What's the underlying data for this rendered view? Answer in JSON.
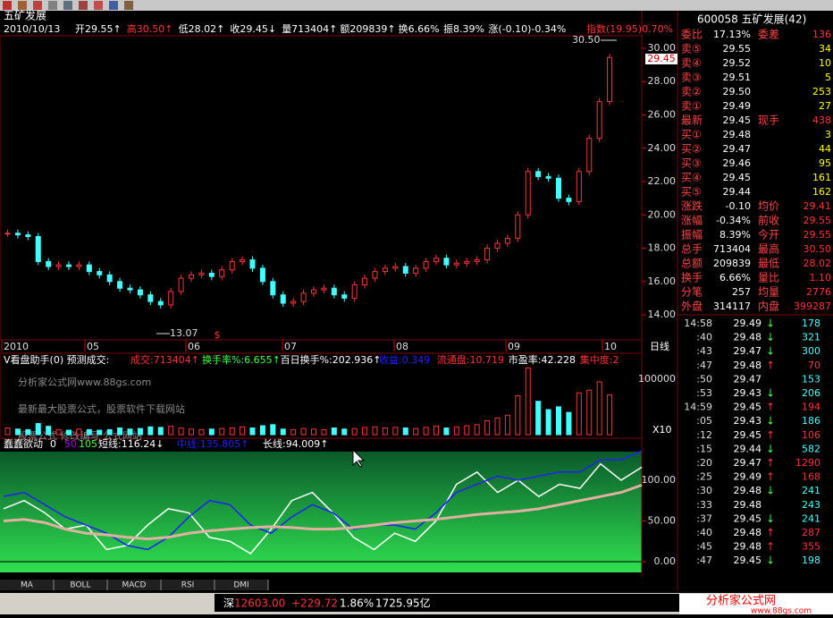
{
  "header": {
    "name": "五矿发展",
    "info": [
      "2010/10/13",
      "开29.55↑",
      "高30.50↑",
      "低28.02↑",
      "收29.45↓",
      "量713404↑",
      "额209839↑",
      "换6.66%",
      "振8.39%",
      "涨(-0.10)-0.34%",
      "指数(19.95)0.70%"
    ]
  },
  "price_panel": {
    "ylim": [
      12.5,
      30.75
    ],
    "yticks": [
      {
        "value": 14,
        "label": "14.00"
      },
      {
        "value": 16,
        "label": "16.00"
      },
      {
        "value": 18,
        "label": "18.00"
      },
      {
        "value": 20,
        "label": "20.00"
      },
      {
        "value": 22,
        "label": "22.00"
      },
      {
        "value": 24,
        "label": "24.00"
      },
      {
        "value": 26,
        "label": "26.00"
      },
      {
        "value": 28,
        "label": "28.00"
      },
      {
        "value": 30,
        "label": "30.00"
      }
    ],
    "closes": [
      18.9,
      18.8,
      18.7,
      17.2,
      16.9,
      17.0,
      16.9,
      17.0,
      16.6,
      16.4,
      16.0,
      15.6,
      15.5,
      15.2,
      14.8,
      14.6,
      15.4,
      16.2,
      16.4,
      16.5,
      16.3,
      16.7,
      17.2,
      17.3,
      16.8,
      16.0,
      15.2,
      14.7,
      14.8,
      15.3,
      15.5,
      15.6,
      15.2,
      15.0,
      15.8,
      16.2,
      16.6,
      16.8,
      16.9,
      16.5,
      16.8,
      17.2,
      17.4,
      17.0,
      17.1,
      17.2,
      17.3,
      18.0,
      18.3,
      18.6,
      20.0,
      22.6,
      22.3,
      22.2,
      21.0,
      20.8,
      22.6,
      24.6,
      26.8,
      29.45
    ],
    "high_label": "30.50",
    "low_label": "13.07",
    "last_label": "29.45",
    "marker": "$"
  },
  "dates": [
    "2010",
    "05",
    "06",
    "07",
    "08",
    "09",
    "10"
  ],
  "period": "日线",
  "volume_panel": {
    "title": "V看盘助手(0) 预测成交:",
    "fields": [
      "成交:713404↑",
      "换手率%:6.655↑",
      "百日换手%:202.936↑",
      "收益:0.349",
      "流通盘:10.719",
      "市盈率:42.228",
      "集中度:2"
    ],
    "watermarks": [
      "分析家公式网www.88gs.com",
      "最新最大股票公式，股票软件下载网站",
      "股票公式 修改编写 公式网站"
    ],
    "ylim": [
      0,
      119000
    ],
    "yticks": [
      100000
    ],
    "scale_label": "X10",
    "values": [
      12000,
      10000,
      9000,
      20000,
      15000,
      9000,
      8000,
      10000,
      9000,
      8000,
      9000,
      12000,
      10000,
      11000,
      14000,
      13000,
      15000,
      12000,
      10000,
      9000,
      10000,
      11000,
      12000,
      14000,
      12000,
      16000,
      18000,
      10000,
      9000,
      11000,
      10000,
      9000,
      12000,
      10000,
      11000,
      13000,
      14000,
      12000,
      13000,
      12000,
      11000,
      13000,
      15000,
      12000,
      14000,
      16000,
      18000,
      25000,
      30000,
      35000,
      70000,
      120000,
      60000,
      45000,
      50000,
      40000,
      75000,
      80000,
      95000,
      71340
    ]
  },
  "indicator_panel": {
    "title": "蠢蠢欲动",
    "params": [
      "0",
      "50",
      "105"
    ],
    "ylim": [
      -13,
      135
    ],
    "yticks": [
      {
        "value": 0,
        "label": "0.00"
      },
      {
        "value": 50,
        "label": "50.00"
      },
      {
        "value": 100,
        "label": "100.00"
      }
    ],
    "lines": [
      {
        "label": "短线:116.24↓",
        "color": "#ffffff",
        "values": [
          65,
          75,
          60,
          40,
          45,
          15,
          20,
          45,
          65,
          60,
          30,
          25,
          10,
          40,
          75,
          85,
          60,
          30,
          15,
          35,
          25,
          50,
          95,
          110,
          85,
          100,
          80,
          95,
          90,
          120,
          100,
          116
        ]
      },
      {
        "label": "中线:135.805↑",
        "color": "#2020ff",
        "values": [
          80,
          85,
          70,
          55,
          45,
          35,
          20,
          15,
          30,
          55,
          75,
          70,
          45,
          35,
          55,
          70,
          60,
          40,
          45,
          45,
          40,
          60,
          85,
          95,
          105,
          100,
          105,
          110,
          110,
          125,
          125,
          136
        ]
      },
      {
        "label": "长线:94.009↑",
        "color": "#e0b0a0",
        "values": [
          50,
          52,
          48,
          40,
          35,
          33,
          30,
          28,
          30,
          35,
          38,
          40,
          42,
          43,
          42,
          40,
          40,
          42,
          45,
          48,
          50,
          52,
          55,
          58,
          60,
          62,
          65,
          70,
          75,
          80,
          85,
          94
        ]
      }
    ]
  },
  "tabs": [
    "MA",
    "BOLL",
    "MACD",
    "RSI",
    "DMI"
  ],
  "status": {
    "market": "深",
    "index": "12603.00",
    "change": "+229.72",
    "pct": "1.86%",
    "amount": "1725.95亿"
  },
  "logo": {
    "name": "分析家公式网",
    "url": "www.88gs.com"
  },
  "quote": {
    "title": "600058 五矿发展(42)",
    "ratio": [
      "委比",
      "17.13%",
      "委差",
      "136"
    ],
    "asks": [
      [
        "卖⑤",
        "29.55",
        "34"
      ],
      [
        "卖④",
        "29.52",
        "10"
      ],
      [
        "卖③",
        "29.51",
        "5"
      ],
      [
        "卖②",
        "29.50",
        "253"
      ],
      [
        "卖①",
        "29.49",
        "27"
      ]
    ],
    "last": [
      "最新",
      "29.45",
      "现手",
      "438"
    ],
    "bids": [
      [
        "买①",
        "29.48",
        "3"
      ],
      [
        "买②",
        "29.47",
        "44"
      ],
      [
        "买③",
        "29.46",
        "95"
      ],
      [
        "买④",
        "29.45",
        "161"
      ],
      [
        "买⑤",
        "29.44",
        "162"
      ]
    ],
    "stats": [
      [
        "涨跌",
        "-0.10",
        "均价",
        "29.41"
      ],
      [
        "涨幅",
        "-0.34%",
        "前收",
        "29.55"
      ],
      [
        "振幅",
        "8.39%",
        "今开",
        "29.55"
      ],
      [
        "总手",
        "713404",
        "最高",
        "30.50"
      ],
      [
        "总额",
        "209839",
        "最低",
        "28.02"
      ],
      [
        "换手",
        "6.66%",
        "量比",
        "1.10"
      ],
      [
        "分笔",
        "257",
        "均量",
        "2776"
      ],
      [
        "外盘",
        "314117",
        "内盘",
        "399287"
      ]
    ],
    "ticks": [
      [
        "14:58",
        "29.49",
        "↓",
        "178"
      ],
      [
        ":40",
        "29.48",
        "↓",
        "321"
      ],
      [
        ":43",
        "29.47",
        "↓",
        "300"
      ],
      [
        ":47",
        "29.48",
        "↑",
        "70"
      ],
      [
        ":50",
        "29.47",
        "",
        "153"
      ],
      [
        ":53",
        "29.43",
        "↓",
        "206"
      ],
      [
        "14:59",
        "29.45",
        "↑",
        "194"
      ],
      [
        ":05",
        "29.43",
        "↓",
        "186"
      ],
      [
        ":12",
        "29.45",
        "↑",
        "106"
      ],
      [
        ":15",
        "29.44",
        "↓",
        "582"
      ],
      [
        ":20",
        "29.47",
        "↑",
        "1290"
      ],
      [
        ":25",
        "29.49",
        "↑",
        "168"
      ],
      [
        ":30",
        "29.48",
        "↓",
        "241"
      ],
      [
        ":33",
        "29.48",
        "",
        "243"
      ],
      [
        ":37",
        "29.45",
        "↓",
        "241"
      ],
      [
        ":40",
        "29.48",
        "↑",
        "287"
      ],
      [
        ":45",
        "29.48",
        "↑",
        "355"
      ],
      [
        ":47",
        "29.45",
        "↓",
        "198"
      ]
    ]
  }
}
